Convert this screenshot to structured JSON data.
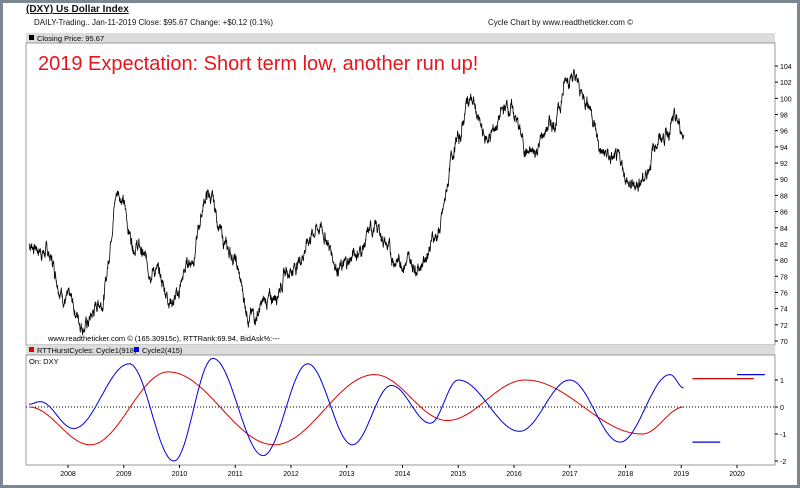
{
  "header": {
    "title": "(DXY) Us Dollar Index",
    "info": "DAILY-Trading.. Jan-11-2019  Close: $95.67  Change: +$0.12  (0.1%)",
    "credit": "Cycle Chart by www.readtheticker.com ©"
  },
  "chart_data": [
    {
      "type": "line",
      "panel_label": "Closing Price: 95.67",
      "annotation": "2019 Expectation: Short term low, another run up!",
      "footer": "www.readtheticker.com © (165.30915c), RTTRank:69.94, BidAsk%:---",
      "ylim": [
        70,
        105
      ],
      "yticks": [
        70,
        72,
        74,
        76,
        78,
        80,
        82,
        84,
        86,
        88,
        90,
        92,
        94,
        96,
        98,
        100,
        102,
        104
      ],
      "x": [
        2007.3,
        2007.6,
        2008.0,
        2008.3,
        2008.6,
        2008.9,
        2009.2,
        2009.5,
        2009.9,
        2010.2,
        2010.5,
        2010.9,
        2011.3,
        2011.6,
        2012.0,
        2012.5,
        2012.9,
        2013.2,
        2013.5,
        2013.9,
        2014.3,
        2014.6,
        2015.0,
        2015.2,
        2015.5,
        2015.9,
        2016.3,
        2016.7,
        2017.0,
        2017.3,
        2017.6,
        2017.9,
        2018.1,
        2018.3,
        2018.6,
        2018.9,
        2019.05
      ],
      "values": [
        82,
        81,
        75,
        72,
        75,
        88.5,
        82,
        79,
        75,
        80,
        88,
        81,
        73,
        75,
        79,
        84,
        79,
        81,
        84,
        80,
        79.5,
        83,
        95,
        100,
        95,
        99,
        93,
        97,
        103,
        100,
        93,
        92,
        89,
        90,
        95,
        97,
        95.7
      ],
      "colors": {
        "line": "#000000",
        "annotation": "#e8141c"
      }
    },
    {
      "type": "line",
      "legend": [
        {
          "name": "RTTHurstCycles: Cycle1(918)",
          "color": "#e00000"
        },
        {
          "name": "Cycle2(415)",
          "color": "#0000e0"
        }
      ],
      "subtitle": "On: DXY",
      "ylim": [
        -2.1,
        2
      ],
      "yticks": [
        -2,
        -1,
        0,
        1
      ],
      "xticks": [
        "2008",
        "2009",
        "2010",
        "2011",
        "2012",
        "2013",
        "2014",
        "2015",
        "2016",
        "2017",
        "2018",
        "2019",
        "2020"
      ],
      "series": [
        {
          "name": "Cycle1(918)",
          "x": [
            2007.3,
            2008.4,
            2009.8,
            2011.7,
            2013.5,
            2014.8,
            2016.2,
            2018.3,
            2019.05
          ],
          "values": [
            0,
            -1.4,
            1.3,
            -1.4,
            1.2,
            -0.5,
            1.0,
            -1.0,
            0
          ]
        },
        {
          "name": "Cycle2(415)",
          "x": [
            2007.3,
            2007.5,
            2008.1,
            2009.1,
            2009.9,
            2010.6,
            2011.5,
            2012.3,
            2013.1,
            2013.8,
            2014.5,
            2015.0,
            2016.1,
            2017.0,
            2017.9,
            2018.8,
            2019.05
          ],
          "values": [
            0.1,
            0.2,
            -0.8,
            1.6,
            -2.0,
            1.8,
            -1.8,
            1.6,
            -1.4,
            0.8,
            -0.6,
            1.0,
            -0.9,
            1.0,
            -1.3,
            1.2,
            0.7
          ]
        }
      ],
      "projections": [
        {
          "series": "Cycle1(918)",
          "x": [
            2019.2,
            2020.3
          ],
          "value": 1.05
        },
        {
          "series": "Cycle2(415)",
          "x": [
            2019.2,
            2019.7
          ],
          "value": -1.3
        },
        {
          "series": "Cycle2(415)",
          "x": [
            2020.0,
            2020.5
          ],
          "value": 1.2
        }
      ]
    }
  ]
}
